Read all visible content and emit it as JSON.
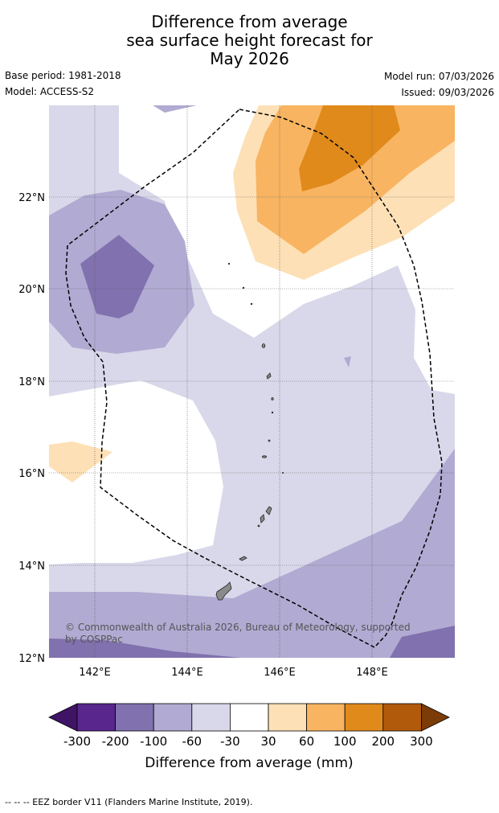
{
  "title": {
    "line1": "Difference from average",
    "line2": "sea surface height forecast for",
    "line3": "May 2026"
  },
  "meta": {
    "base_period": "Base period: 1981-2018",
    "model": "Model: ACCESS-S2",
    "model_run": "Model run: 07/03/2026",
    "issued": "Issued: 09/03/2026"
  },
  "map": {
    "lat_labels": [
      "22°N",
      "20°N",
      "18°N",
      "16°N",
      "14°N",
      "12°N"
    ],
    "lon_labels": [
      "142°E",
      "144°E",
      "146°E",
      "148°E"
    ],
    "credit_line1": "© Commonwealth of Australia 2026, Bureau of Meteorology, supported",
    "credit_line2": "by COSPPac"
  },
  "colorbar": {
    "ticks": [
      "-300",
      "-200",
      "-100",
      "-60",
      "-30",
      "30",
      "60",
      "100",
      "200",
      "300"
    ],
    "label": "Difference from average (mm)",
    "colors": [
      "#3f1465",
      "#58268c",
      "#8171ae",
      "#b1aad2",
      "#d8d8ea",
      "#ffffff",
      "#fde0b6",
      "#f8b461",
      "#e08a1c",
      "#b25a0c",
      "#7c3c07"
    ]
  },
  "footer": "--  --  -- EEZ border V11 (Flanders Marine Institute, 2019)."
}
